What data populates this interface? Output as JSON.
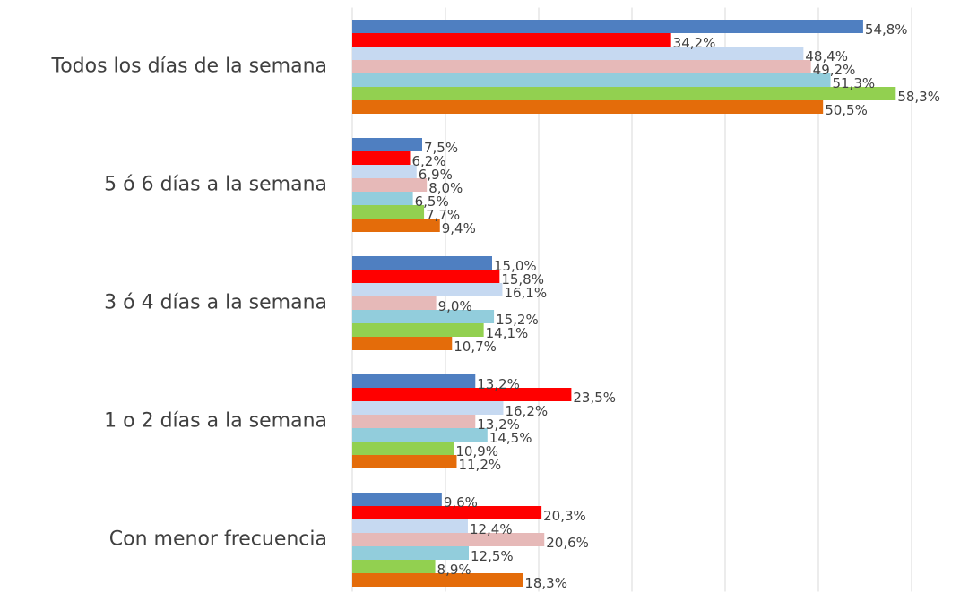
{
  "chart_data": {
    "type": "bar",
    "orientation": "horizontal",
    "categories": [
      "Todos los días de la semana",
      "5 ó 6 días a la semana",
      "3 ó 4 días a la semana",
      "1 o 2 días a la semana",
      "Con menor frecuencia"
    ],
    "series": [
      {
        "color": "#4f7fc1",
        "values": [
          54.8,
          7.5,
          15.0,
          13.2,
          9.6
        ],
        "value_labels": [
          "54,8%",
          "7,5%",
          "15,0%",
          "13,2%",
          "9,6%"
        ]
      },
      {
        "color": "#ff0000",
        "values": [
          34.2,
          6.2,
          15.8,
          23.5,
          20.3
        ],
        "value_labels": [
          "34,2%",
          "6,2%",
          "15,8%",
          "23,5%",
          "20,3%"
        ]
      },
      {
        "color": "#c6d9f1",
        "values": [
          48.4,
          6.9,
          16.1,
          16.2,
          12.4
        ],
        "value_labels": [
          "48,4%",
          "6,9%",
          "16,1%",
          "16,2%",
          "12,4%"
        ]
      },
      {
        "color": "#e6b9b8",
        "values": [
          49.2,
          8.0,
          9.0,
          13.2,
          20.6
        ],
        "value_labels": [
          "49,2%",
          "8,0%",
          "9,0%",
          "13,2%",
          "20,6%"
        ]
      },
      {
        "color": "#92cddc",
        "values": [
          51.3,
          6.5,
          15.2,
          14.5,
          12.5
        ],
        "value_labels": [
          "51,3%",
          "6,5%",
          "15,2%",
          "14,5%",
          "12,5%"
        ]
      },
      {
        "color": "#92d050",
        "values": [
          58.3,
          7.7,
          14.1,
          10.9,
          8.9
        ],
        "value_labels": [
          "58,3%",
          "7,7%",
          "14,1%",
          "10,9%",
          "8,9%"
        ]
      },
      {
        "color": "#e46c0a",
        "values": [
          50.5,
          9.4,
          10.7,
          11.2,
          18.3
        ],
        "value_labels": [
          "50,5%",
          "9,4%",
          "10,7%",
          "11,2%",
          "18,3%"
        ]
      }
    ],
    "xlim": [
      0,
      60
    ],
    "xticks": [
      0,
      10,
      20,
      30,
      40,
      50,
      60
    ],
    "grid": true
  }
}
